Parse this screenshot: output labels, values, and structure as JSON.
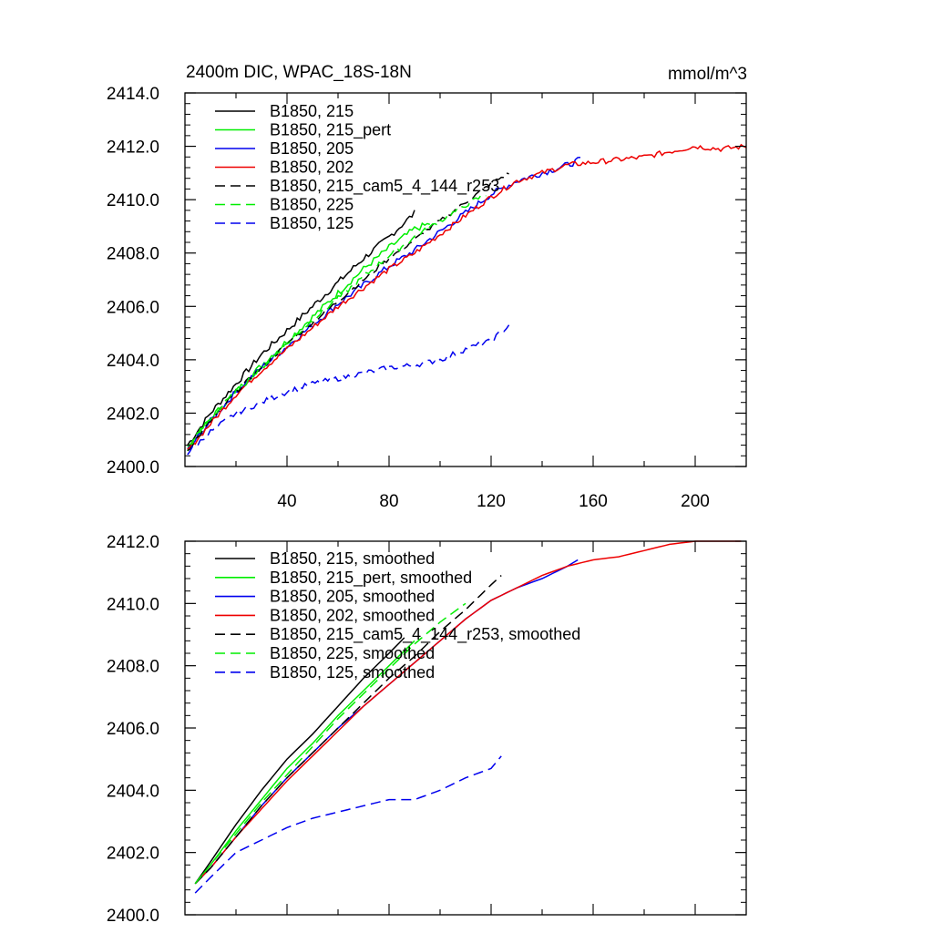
{
  "chart_data": [
    {
      "type": "line",
      "title": "2400m DIC, WPAC_18S-18N",
      "units_label": "mmol/m^3",
      "xlim": [
        0,
        220
      ],
      "ylim": [
        2400,
        2414
      ],
      "xticks": [
        40,
        80,
        120,
        160,
        200
      ],
      "xtick_labels": [
        "40",
        "80",
        "120",
        "160",
        "200"
      ],
      "yticks": [
        2400,
        2402,
        2404,
        2406,
        2408,
        2410,
        2412,
        2414
      ],
      "ytick_labels": [
        "2400.0",
        "2402.0",
        "2404.0",
        "2406.0",
        "2408.0",
        "2410.0",
        "2412.0",
        "2414.0"
      ],
      "grid": false,
      "legend_position": "top-left",
      "series": [
        {
          "name": "B1850, 215",
          "color": "#000000",
          "dash": "solid",
          "noise": 0.12,
          "x": [
            1,
            10,
            20,
            30,
            40,
            50,
            60,
            70,
            80,
            90
          ],
          "y": [
            2400.8,
            2402.0,
            2403.1,
            2404.2,
            2405.1,
            2406.0,
            2406.9,
            2407.8,
            2408.6,
            2409.5
          ]
        },
        {
          "name": "B1850, 215_pert",
          "color": "#00ee00",
          "dash": "solid",
          "noise": 0.12,
          "x": [
            1,
            10,
            20,
            30,
            40,
            50,
            60,
            70,
            80,
            90,
            96
          ],
          "y": [
            2400.7,
            2401.8,
            2402.8,
            2403.8,
            2404.7,
            2405.6,
            2406.5,
            2407.4,
            2408.2,
            2408.9,
            2409.1
          ]
        },
        {
          "name": "B1850, 205",
          "color": "#0000ee",
          "dash": "solid",
          "noise": 0.12,
          "x": [
            1,
            10,
            20,
            30,
            40,
            50,
            60,
            70,
            80,
            90,
            100,
            110,
            120,
            130,
            140,
            150,
            155
          ],
          "y": [
            2400.6,
            2401.7,
            2402.8,
            2403.7,
            2404.5,
            2405.3,
            2406.1,
            2406.8,
            2407.5,
            2408.1,
            2408.8,
            2409.5,
            2410.2,
            2410.7,
            2411.0,
            2411.3,
            2411.5
          ]
        },
        {
          "name": "B1850, 202",
          "color": "#ee0000",
          "dash": "solid",
          "noise": 0.1,
          "x": [
            1,
            10,
            20,
            30,
            40,
            50,
            60,
            70,
            80,
            90,
            100,
            110,
            120,
            130,
            140,
            150,
            160,
            170,
            180,
            190,
            200,
            210,
            220
          ],
          "y": [
            2400.6,
            2401.6,
            2402.7,
            2403.6,
            2404.4,
            2405.2,
            2406.0,
            2406.7,
            2407.4,
            2408.0,
            2408.7,
            2409.4,
            2410.1,
            2410.7,
            2411.0,
            2411.3,
            2411.4,
            2411.5,
            2411.6,
            2411.8,
            2412.0,
            2411.9,
            2412.0
          ]
        },
        {
          "name": "B1850, 215_cam5_4_144_r253",
          "color": "#000000",
          "dash": "dashed",
          "noise": 0.08,
          "x": [
            1,
            10,
            20,
            30,
            40,
            50,
            60,
            70,
            80,
            90,
            100,
            110,
            120,
            127
          ],
          "y": [
            2400.6,
            2401.7,
            2402.8,
            2403.7,
            2404.6,
            2405.4,
            2406.2,
            2407.0,
            2407.8,
            2408.5,
            2409.2,
            2409.9,
            2410.6,
            2411.0
          ]
        },
        {
          "name": "B1850, 225",
          "color": "#00ee00",
          "dash": "dashed",
          "noise": 0.1,
          "x": [
            1,
            10,
            20,
            30,
            40,
            50,
            60,
            70,
            80,
            90,
            100,
            110,
            118
          ],
          "y": [
            2400.7,
            2401.8,
            2402.8,
            2403.7,
            2404.6,
            2405.5,
            2406.3,
            2407.1,
            2407.9,
            2408.6,
            2409.2,
            2409.8,
            2410.2
          ]
        },
        {
          "name": "B1850, 125",
          "color": "#0000ee",
          "dash": "dashed",
          "noise": 0.1,
          "x": [
            1,
            10,
            20,
            30,
            40,
            50,
            60,
            70,
            80,
            90,
            100,
            110,
            120,
            127
          ],
          "y": [
            2400.5,
            2401.3,
            2402.0,
            2402.4,
            2402.8,
            2403.1,
            2403.3,
            2403.5,
            2403.7,
            2403.8,
            2404.0,
            2404.4,
            2404.7,
            2405.3
          ]
        }
      ]
    },
    {
      "type": "line",
      "xlim": [
        0,
        220
      ],
      "ylim": [
        2400,
        2412
      ],
      "xticks": [
        40,
        80,
        120,
        160,
        200
      ],
      "yticks": [
        2400,
        2402,
        2404,
        2406,
        2408,
        2410,
        2412
      ],
      "ytick_labels": [
        "2400.0",
        "2402.0",
        "2404.0",
        "2406.0",
        "2408.0",
        "2410.0",
        "2412.0"
      ],
      "grid": false,
      "legend_position": "top-left",
      "series": [
        {
          "name": "B1850, 215, smoothed",
          "color": "#000000",
          "dash": "solid",
          "noise": 0,
          "x": [
            4,
            10,
            20,
            30,
            40,
            50,
            60,
            70,
            80,
            86
          ],
          "y": [
            2401.0,
            2401.7,
            2402.9,
            2404.0,
            2405.0,
            2405.8,
            2406.7,
            2407.6,
            2408.4,
            2408.9
          ]
        },
        {
          "name": "B1850, 215_pert, smoothed",
          "color": "#00ee00",
          "dash": "solid",
          "noise": 0,
          "x": [
            4,
            10,
            20,
            30,
            40,
            50,
            60,
            70,
            80,
            90
          ],
          "y": [
            2401.0,
            2401.6,
            2402.7,
            2403.7,
            2404.7,
            2405.5,
            2406.4,
            2407.2,
            2408.0,
            2408.8
          ]
        },
        {
          "name": "B1850, 205, smoothed",
          "color": "#0000ee",
          "dash": "solid",
          "noise": 0,
          "x": [
            4,
            10,
            20,
            30,
            40,
            50,
            60,
            70,
            80,
            90,
            100,
            110,
            120,
            130,
            140,
            150,
            154
          ],
          "y": [
            2401.0,
            2401.5,
            2402.5,
            2403.5,
            2404.4,
            2405.2,
            2406.0,
            2406.7,
            2407.4,
            2408.1,
            2408.8,
            2409.5,
            2410.1,
            2410.5,
            2410.8,
            2411.2,
            2411.4
          ]
        },
        {
          "name": "B1850, 202, smoothed",
          "color": "#ee0000",
          "dash": "solid",
          "noise": 0,
          "x": [
            4,
            10,
            20,
            30,
            40,
            50,
            60,
            70,
            80,
            90,
            100,
            110,
            120,
            130,
            140,
            150,
            160,
            170,
            180,
            190,
            200,
            210,
            218
          ],
          "y": [
            2401.0,
            2401.5,
            2402.5,
            2403.4,
            2404.3,
            2405.1,
            2405.9,
            2406.7,
            2407.4,
            2408.1,
            2408.8,
            2409.5,
            2410.1,
            2410.5,
            2410.9,
            2411.2,
            2411.4,
            2411.5,
            2411.7,
            2411.9,
            2412.0,
            2412.0,
            2412.0
          ]
        },
        {
          "name": "B1850, 215_cam5_4_144_r253, smoothed",
          "color": "#000000",
          "dash": "dashed",
          "noise": 0,
          "x": [
            4,
            10,
            20,
            30,
            40,
            50,
            60,
            70,
            80,
            90,
            100,
            110,
            120,
            124
          ],
          "y": [
            2401.0,
            2401.5,
            2402.5,
            2403.5,
            2404.4,
            2405.2,
            2406.0,
            2406.8,
            2407.6,
            2408.3,
            2409.1,
            2409.8,
            2410.6,
            2410.9
          ]
        },
        {
          "name": "B1850, 225, smoothed",
          "color": "#00ee00",
          "dash": "dashed",
          "noise": 0,
          "x": [
            4,
            10,
            20,
            30,
            40,
            50,
            60,
            70,
            80,
            90,
            100,
            110
          ],
          "y": [
            2401.0,
            2401.6,
            2402.6,
            2403.6,
            2404.5,
            2405.4,
            2406.3,
            2407.1,
            2407.9,
            2408.7,
            2409.4,
            2410.0
          ]
        },
        {
          "name": "B1850, 125, smoothed",
          "color": "#0000ee",
          "dash": "dashed",
          "noise": 0,
          "x": [
            4,
            10,
            20,
            30,
            40,
            50,
            60,
            70,
            80,
            90,
            100,
            110,
            120,
            124
          ],
          "y": [
            2400.7,
            2401.2,
            2402.0,
            2402.4,
            2402.8,
            2403.1,
            2403.3,
            2403.5,
            2403.7,
            2403.7,
            2404.0,
            2404.4,
            2404.7,
            2405.1
          ]
        }
      ]
    }
  ]
}
